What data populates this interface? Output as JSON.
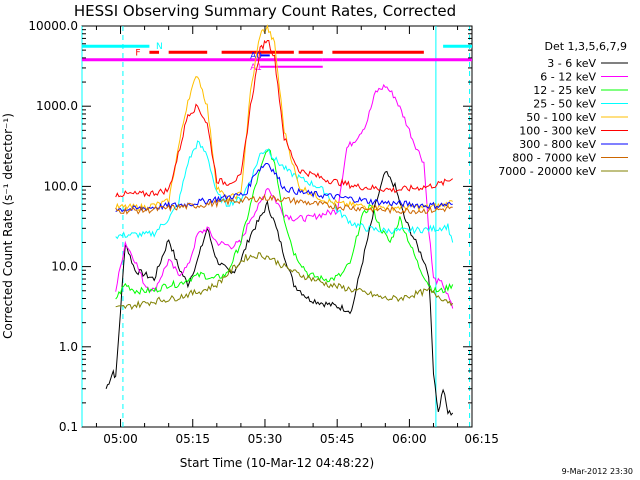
{
  "chart_data": {
    "type": "line",
    "title": "HESSI Observing Summary Count Rates, Corrected",
    "xlabel": "Start Time (10-Mar-12 04:48:22)",
    "ylabel": "Corrected Count Rate (s⁻¹ detector⁻¹)",
    "yscale": "log",
    "ylim": [
      0.1,
      10000
    ],
    "xlim": [
      -8,
      73
    ],
    "xunit": "minutes after 05:00 UT",
    "yticks": [
      "0.1",
      "1.0",
      "10.0",
      "100.0",
      "1000.0",
      "10000.0"
    ],
    "xticks": [
      {
        "x": 0,
        "label": "05:00"
      },
      {
        "x": 15,
        "label": "05:15"
      },
      {
        "x": 30,
        "label": "05:30"
      },
      {
        "x": 45,
        "label": "05:45"
      },
      {
        "x": 60,
        "label": "06:00"
      },
      {
        "x": 75,
        "label": "06:15"
      }
    ],
    "legend_title": "Det 1,3,5,6,7,9",
    "legend_position": "right",
    "footer": "9-Mar-2012 23:30",
    "series": [
      {
        "name": "3 - 6 keV",
        "color": "#000000",
        "points": [
          [
            -3,
            0.3
          ],
          [
            -1.5,
            0.5
          ],
          [
            -1,
            0.4
          ],
          [
            1,
            20
          ],
          [
            3,
            9
          ],
          [
            5,
            8
          ],
          [
            7,
            7
          ],
          [
            10,
            22
          ],
          [
            12,
            10
          ],
          [
            14,
            6
          ],
          [
            16,
            12
          ],
          [
            18,
            30
          ],
          [
            20,
            12
          ],
          [
            23,
            8
          ],
          [
            25,
            12
          ],
          [
            27,
            25
          ],
          [
            29,
            40
          ],
          [
            30.5,
            60
          ],
          [
            32,
            35
          ],
          [
            34,
            14
          ],
          [
            36,
            6
          ],
          [
            39,
            4
          ],
          [
            42,
            3.5
          ],
          [
            45,
            3.2
          ],
          [
            48,
            2.8
          ],
          [
            50,
            10
          ],
          [
            53,
            60
          ],
          [
            55,
            150
          ],
          [
            57,
            100
          ],
          [
            59,
            40
          ],
          [
            61,
            22
          ],
          [
            63,
            12
          ],
          [
            64,
            8
          ],
          [
            65,
            0.5
          ],
          [
            66,
            0.15
          ],
          [
            67,
            0.3
          ],
          [
            68,
            0.15
          ],
          [
            69,
            0.15
          ]
        ]
      },
      {
        "name": "6 - 12 keV",
        "color": "#ff00ff",
        "points": [
          [
            -1,
            5
          ],
          [
            1,
            20
          ],
          [
            3,
            12
          ],
          [
            5,
            6
          ],
          [
            7,
            5
          ],
          [
            10,
            12
          ],
          [
            12,
            8
          ],
          [
            14,
            10
          ],
          [
            16,
            25
          ],
          [
            18,
            30
          ],
          [
            20,
            20
          ],
          [
            23,
            18
          ],
          [
            25,
            20
          ],
          [
            27,
            40
          ],
          [
            29,
            60
          ],
          [
            30.5,
            100
          ],
          [
            32,
            70
          ],
          [
            34,
            45
          ],
          [
            36,
            40
          ],
          [
            39,
            40
          ],
          [
            42,
            45
          ],
          [
            45,
            50
          ],
          [
            47,
            300
          ],
          [
            49,
            400
          ],
          [
            51,
            600
          ],
          [
            53,
            1500
          ],
          [
            55,
            1800
          ],
          [
            57,
            1300
          ],
          [
            59,
            700
          ],
          [
            61,
            350
          ],
          [
            63,
            200
          ],
          [
            64,
            30
          ],
          [
            65,
            7
          ],
          [
            67,
            6
          ],
          [
            69,
            3
          ]
        ]
      },
      {
        "name": "12 - 25 keV",
        "color": "#00ff00",
        "points": [
          [
            -1,
            4
          ],
          [
            1,
            6
          ],
          [
            3,
            5
          ],
          [
            5,
            5
          ],
          [
            7,
            5
          ],
          [
            10,
            6
          ],
          [
            12,
            6
          ],
          [
            14,
            7
          ],
          [
            17,
            8
          ],
          [
            19,
            7
          ],
          [
            22,
            8
          ],
          [
            25,
            20
          ],
          [
            28,
            100
          ],
          [
            30.5,
            300
          ],
          [
            32,
            200
          ],
          [
            34,
            40
          ],
          [
            36,
            15
          ],
          [
            39,
            8
          ],
          [
            42,
            7
          ],
          [
            44,
            7
          ],
          [
            46,
            8
          ],
          [
            48,
            12
          ],
          [
            50,
            40
          ],
          [
            52,
            60
          ],
          [
            54,
            30
          ],
          [
            56,
            20
          ],
          [
            58,
            40
          ],
          [
            60,
            20
          ],
          [
            62,
            10
          ],
          [
            64,
            6
          ],
          [
            65,
            5
          ],
          [
            67,
            5
          ],
          [
            69,
            6
          ]
        ]
      },
      {
        "name": "25 - 50 keV",
        "color": "#00ffff",
        "points": [
          [
            -1,
            24
          ],
          [
            2,
            25
          ],
          [
            5,
            25
          ],
          [
            7,
            26
          ],
          [
            10,
            40
          ],
          [
            12,
            60
          ],
          [
            14,
            200
          ],
          [
            16,
            350
          ],
          [
            18,
            250
          ],
          [
            20,
            80
          ],
          [
            22,
            60
          ],
          [
            25,
            70
          ],
          [
            27,
            120
          ],
          [
            29,
            250
          ],
          [
            30.5,
            300
          ],
          [
            32,
            220
          ],
          [
            35,
            150
          ],
          [
            38,
            120
          ],
          [
            41,
            100
          ],
          [
            43,
            80
          ],
          [
            45,
            50
          ],
          [
            48,
            35
          ],
          [
            51,
            30
          ],
          [
            55,
            28
          ],
          [
            59,
            28
          ],
          [
            63,
            29
          ],
          [
            66,
            30
          ],
          [
            68,
            32
          ],
          [
            69,
            20
          ]
        ]
      },
      {
        "name": "50 - 100 keV",
        "color": "#ffbf00",
        "points": [
          [
            -1,
            55
          ],
          [
            2,
            55
          ],
          [
            5,
            55
          ],
          [
            8,
            60
          ],
          [
            10,
            65
          ],
          [
            12,
            300
          ],
          [
            14,
            1200
          ],
          [
            16,
            2500
          ],
          [
            18,
            1000
          ],
          [
            20,
            100
          ],
          [
            22,
            70
          ],
          [
            25,
            80
          ],
          [
            27,
            1500
          ],
          [
            29,
            8000
          ],
          [
            30.5,
            9500
          ],
          [
            32,
            6000
          ],
          [
            34,
            500
          ],
          [
            37,
            100
          ],
          [
            40,
            80
          ],
          [
            43,
            65
          ],
          [
            46,
            60
          ],
          [
            49,
            58
          ],
          [
            53,
            55
          ],
          [
            57,
            55
          ],
          [
            61,
            55
          ],
          [
            64,
            55
          ],
          [
            67,
            58
          ],
          [
            69,
            65
          ]
        ]
      },
      {
        "name": "100 - 300 keV",
        "color": "#ff0000",
        "points": [
          [
            -1,
            80
          ],
          [
            2,
            80
          ],
          [
            5,
            80
          ],
          [
            8,
            85
          ],
          [
            10,
            90
          ],
          [
            12,
            250
          ],
          [
            14,
            800
          ],
          [
            16,
            1000
          ],
          [
            18,
            600
          ],
          [
            20,
            120
          ],
          [
            22,
            110
          ],
          [
            25,
            130
          ],
          [
            27,
            1000
          ],
          [
            29,
            5000
          ],
          [
            30.5,
            7000
          ],
          [
            32,
            4000
          ],
          [
            34,
            400
          ],
          [
            37,
            160
          ],
          [
            40,
            140
          ],
          [
            43,
            120
          ],
          [
            46,
            110
          ],
          [
            49,
            100
          ],
          [
            53,
            95
          ],
          [
            57,
            90
          ],
          [
            61,
            95
          ],
          [
            64,
            100
          ],
          [
            67,
            110
          ],
          [
            69,
            125
          ]
        ]
      },
      {
        "name": "300 - 800 keV",
        "color": "#0000ff",
        "points": [
          [
            -1,
            52
          ],
          [
            3,
            52
          ],
          [
            7,
            55
          ],
          [
            11,
            58
          ],
          [
            14,
            60
          ],
          [
            17,
            65
          ],
          [
            20,
            70
          ],
          [
            23,
            75
          ],
          [
            26,
            80
          ],
          [
            28,
            150
          ],
          [
            30.5,
            200
          ],
          [
            32,
            150
          ],
          [
            34,
            95
          ],
          [
            37,
            85
          ],
          [
            40,
            80
          ],
          [
            44,
            75
          ],
          [
            48,
            70
          ],
          [
            52,
            65
          ],
          [
            56,
            62
          ],
          [
            60,
            60
          ],
          [
            63,
            58
          ],
          [
            66,
            58
          ],
          [
            69,
            60
          ]
        ]
      },
      {
        "name": "800 - 7000 keV",
        "color": "#cc6600",
        "points": [
          [
            -1,
            50
          ],
          [
            4,
            50
          ],
          [
            8,
            52
          ],
          [
            12,
            55
          ],
          [
            16,
            58
          ],
          [
            20,
            62
          ],
          [
            24,
            66
          ],
          [
            28,
            70
          ],
          [
            30.5,
            72
          ],
          [
            33,
            70
          ],
          [
            37,
            65
          ],
          [
            41,
            60
          ],
          [
            45,
            56
          ],
          [
            49,
            54
          ],
          [
            53,
            52
          ],
          [
            57,
            50
          ],
          [
            61,
            50
          ],
          [
            64,
            50
          ],
          [
            67,
            52
          ],
          [
            69,
            55
          ]
        ]
      },
      {
        "name": "7000 - 20000 keV",
        "color": "#808000",
        "points": [
          [
            -1,
            3
          ],
          [
            2,
            3.2
          ],
          [
            5,
            3.5
          ],
          [
            8,
            3.8
          ],
          [
            11,
            4
          ],
          [
            14,
            4.5
          ],
          [
            17,
            5
          ],
          [
            20,
            6
          ],
          [
            23,
            9
          ],
          [
            26,
            13
          ],
          [
            29,
            14
          ],
          [
            31,
            13
          ],
          [
            34,
            10
          ],
          [
            37,
            8
          ],
          [
            40,
            7
          ],
          [
            43,
            6
          ],
          [
            46,
            5.5
          ],
          [
            49,
            5
          ],
          [
            52,
            4.5
          ],
          [
            55,
            4
          ],
          [
            58,
            4
          ],
          [
            61,
            4.5
          ],
          [
            64,
            5
          ],
          [
            67,
            4
          ],
          [
            69,
            3.5
          ]
        ]
      }
    ],
    "attenuator_levels": [
      {
        "label": "A0",
        "color": "#0000ff",
        "segments": [
          [
            29,
            31
          ]
        ],
        "level": 4300
      },
      {
        "label": "A1",
        "color": "#ff00ff",
        "segments": [
          [
            29,
            42
          ]
        ],
        "level": 3100
      }
    ],
    "status_bars": [
      {
        "label": "N",
        "color": "#00ffff",
        "level": 5600,
        "segments": [
          [
            -8,
            6
          ],
          [
            67,
            73
          ]
        ]
      },
      {
        "label": "F",
        "color": "#ff0000",
        "level": 4700,
        "segments": [
          [
            6,
            8
          ],
          [
            10,
            18
          ],
          [
            21,
            36
          ],
          [
            37,
            42
          ],
          [
            44,
            63
          ]
        ]
      },
      {
        "label": "",
        "color": "#ff00ff",
        "level": 3800,
        "segments": [
          [
            -8,
            42
          ],
          [
            42,
            73
          ]
        ]
      }
    ],
    "vertical_markers": [
      {
        "x": 0.5,
        "color": "#00ffff",
        "style": "dashed"
      },
      {
        "x": 65.5,
        "color": "#00ffff",
        "style": "solid"
      },
      {
        "x": 72.5,
        "color": "#00ffff",
        "style": "dashed"
      },
      {
        "x": -8,
        "color": "#00ffff",
        "style": "solid"
      }
    ]
  }
}
